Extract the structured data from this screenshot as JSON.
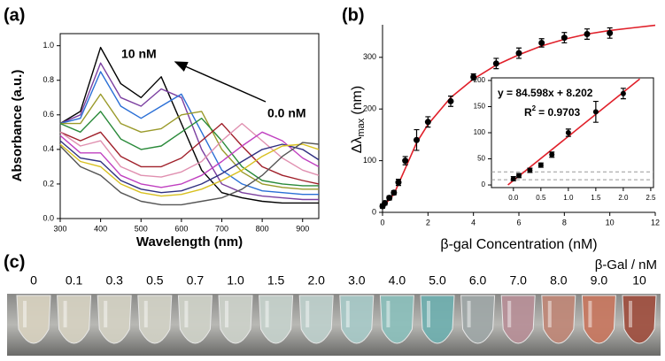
{
  "chart_data": [
    {
      "type": "line",
      "label": "(a)",
      "x_label": "Wavelength (nm)",
      "y_label": "Absorbance (a.u.)",
      "annotations": [
        "10 nM",
        "0.0 nM"
      ],
      "xlim": [
        300,
        940
      ],
      "ylim": [
        0,
        1.07
      ],
      "xticks": [
        300,
        400,
        500,
        600,
        700,
        800,
        900
      ],
      "yticks": [
        {
          "value": 0,
          "label": "0.0"
        },
        {
          "value": 0.2,
          "label": "0.2"
        },
        {
          "value": 0.4,
          "label": "0.4"
        },
        {
          "value": 0.6,
          "label": "0.6"
        },
        {
          "value": 0.8,
          "label": "0.8"
        },
        {
          "value": 1,
          "label": "1.0"
        }
      ],
      "x": [
        300,
        350,
        400,
        450,
        500,
        550,
        600,
        650,
        700,
        750,
        800,
        850,
        900,
        940
      ],
      "series": [
        {
          "color": "#000000",
          "values": [
            0.55,
            0.62,
            0.99,
            0.78,
            0.7,
            0.82,
            0.55,
            0.28,
            0.15,
            0.12,
            0.1,
            0.09,
            0.09,
            0.09
          ]
        },
        {
          "color": "#7b3fa0",
          "values": [
            0.55,
            0.6,
            0.9,
            0.7,
            0.65,
            0.75,
            0.7,
            0.4,
            0.2,
            0.15,
            0.13,
            0.12,
            0.11,
            0.11
          ]
        },
        {
          "color": "#2a6fd6",
          "values": [
            0.55,
            0.58,
            0.85,
            0.65,
            0.58,
            0.65,
            0.72,
            0.5,
            0.28,
            0.2,
            0.16,
            0.15,
            0.14,
            0.14
          ]
        },
        {
          "color": "#9a9a2a",
          "values": [
            0.55,
            0.55,
            0.72,
            0.55,
            0.5,
            0.52,
            0.6,
            0.62,
            0.4,
            0.27,
            0.2,
            0.18,
            0.17,
            0.17
          ]
        },
        {
          "color": "#2a8a3a",
          "values": [
            0.55,
            0.5,
            0.62,
            0.46,
            0.4,
            0.42,
            0.5,
            0.58,
            0.45,
            0.3,
            0.22,
            0.2,
            0.19,
            0.19
          ]
        },
        {
          "color": "#a0202a",
          "values": [
            0.5,
            0.45,
            0.5,
            0.36,
            0.3,
            0.3,
            0.35,
            0.45,
            0.55,
            0.42,
            0.3,
            0.25,
            0.22,
            0.2
          ]
        },
        {
          "color": "#e090b0",
          "values": [
            0.5,
            0.42,
            0.45,
            0.3,
            0.25,
            0.24,
            0.27,
            0.33,
            0.45,
            0.55,
            0.45,
            0.35,
            0.28,
            0.25
          ]
        },
        {
          "color": "#c040c0",
          "values": [
            0.48,
            0.38,
            0.38,
            0.25,
            0.2,
            0.18,
            0.2,
            0.25,
            0.33,
            0.42,
            0.5,
            0.45,
            0.35,
            0.3
          ]
        },
        {
          "color": "#303080",
          "values": [
            0.45,
            0.35,
            0.33,
            0.22,
            0.17,
            0.15,
            0.16,
            0.2,
            0.26,
            0.33,
            0.4,
            0.43,
            0.4,
            0.34
          ]
        },
        {
          "color": "#d8c020",
          "values": [
            0.43,
            0.33,
            0.3,
            0.2,
            0.15,
            0.13,
            0.14,
            0.17,
            0.22,
            0.28,
            0.36,
            0.42,
            0.43,
            0.4
          ]
        },
        {
          "color": "#555555",
          "values": [
            0.42,
            0.3,
            0.25,
            0.15,
            0.1,
            0.08,
            0.08,
            0.1,
            0.12,
            0.17,
            0.25,
            0.36,
            0.44,
            0.43
          ]
        }
      ]
    },
    {
      "type": "scatter",
      "label": "(b)",
      "x_label": "β-gal Concentration (nM)",
      "y_label": [
        "Δλ",
        "max",
        "(nm)"
      ],
      "xlim": [
        0,
        12
      ],
      "ylim": [
        0,
        363
      ],
      "xticks": [
        0,
        2,
        4,
        6,
        8,
        10,
        12
      ],
      "yticks": [
        0,
        100,
        200,
        300
      ],
      "x": [
        0,
        0.1,
        0.3,
        0.5,
        0.7,
        1,
        1.5,
        2,
        3,
        4,
        5,
        6,
        7,
        8,
        9,
        10
      ],
      "values": [
        12,
        18,
        28,
        38,
        58,
        100,
        140,
        175,
        215,
        262,
        288,
        308,
        328,
        338,
        345,
        347
      ],
      "errors": [
        4,
        4,
        4,
        4,
        6,
        8,
        20,
        10,
        10,
        6,
        10,
        10,
        8,
        10,
        10,
        10
      ],
      "color": "#000000",
      "fit": {
        "color": "#e0202a",
        "x": [
          0,
          0.5,
          1,
          1.5,
          2,
          3,
          4,
          5,
          6,
          7,
          8,
          9,
          10,
          11,
          12
        ],
        "values": [
          10,
          35,
          85,
          135,
          170,
          222,
          258,
          285,
          305,
          322,
          335,
          345,
          352,
          357,
          362
        ]
      }
    },
    {
      "type": "scatter",
      "equation": "y = 84.598x + 8.202",
      "r2": [
        "R",
        "2",
        "= 0.9703"
      ],
      "xlim": [
        -0.4,
        2.55
      ],
      "ylim": [
        -5,
        205
      ],
      "xticks": [
        {
          "value": 0,
          "label": "0.0"
        },
        {
          "value": 0.5,
          "label": "0.5"
        },
        {
          "value": 1,
          "label": "1.0"
        },
        {
          "value": 1.5,
          "label": "1.5"
        },
        {
          "value": 2,
          "label": "2.0"
        },
        2.5
      ],
      "yticks": [
        0,
        50,
        100,
        150,
        200
      ],
      "x": [
        0,
        0.1,
        0.3,
        0.5,
        0.7,
        1,
        1.5,
        2
      ],
      "values": [
        12,
        18,
        28,
        38,
        58,
        100,
        140,
        175
      ],
      "errors": [
        4,
        4,
        4,
        4,
        5,
        7,
        20,
        10
      ],
      "color": "#000000",
      "hlines": [
        10,
        25
      ],
      "hline_color": "#999999",
      "fit": {
        "color": "#e0202a",
        "x": [
          -0.1,
          2.3
        ],
        "values": [
          0,
          203
        ]
      }
    }
  ],
  "photo": {
    "label": "(c)",
    "unit": "β-Gal / nM",
    "concentrations": [
      "0",
      "0.1",
      "0.3",
      "0.5",
      "0.7",
      "1.0",
      "1.5",
      "2.0",
      "3.0",
      "4.0",
      "5.0",
      "6.0",
      "7.0",
      "8.0",
      "9.0",
      "10"
    ],
    "colors": [
      "#d8d2c0",
      "#d6d2c2",
      "#d4d2c4",
      "#d2d2c6",
      "#cfd2c8",
      "#cdd2ca",
      "#c6d2cc",
      "#bed0cc",
      "#a8cac8",
      "#8cc0bc",
      "#70b0b0",
      "#a0a8a8",
      "#b89098",
      "#c08878",
      "#c87860",
      "#a05040"
    ]
  }
}
